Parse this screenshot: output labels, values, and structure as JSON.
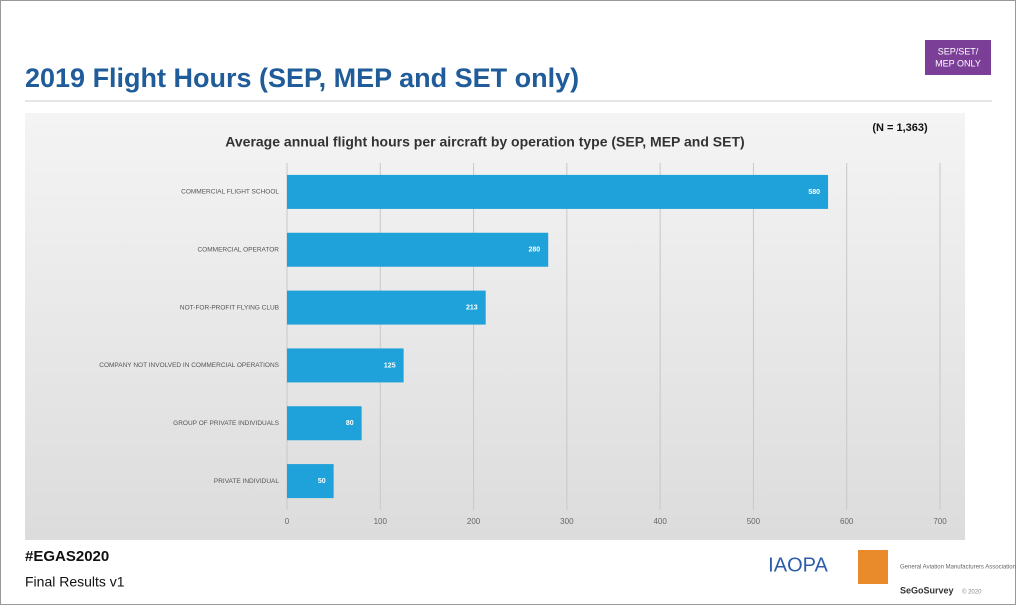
{
  "slide_title": "2019 Flight Hours (SEP, MEP and SET only)",
  "badge": [
    "SEP/SET/",
    "MEP ONLY"
  ],
  "footer": {
    "hashtag": "#EGAS2020",
    "version": "Final Results v1"
  },
  "logos": {
    "iaopa": "IAOPA",
    "gama": "General Aviation Manufacturers Association",
    "survey": "SeGoSurvey",
    "copyright": "© 2020"
  },
  "chart_data": {
    "type": "hbar",
    "title": "Average annual flight hours per aircraft by operation type (SEP, MEP and SET)",
    "annotation": "(N = 1,363)",
    "categories": [
      "COMMERCIAL FLIGHT SCHOOL",
      "COMMERCIAL OPERATOR",
      "NOT-FOR-PROFIT FLYING CLUB",
      "COMPANY NOT INVOLVED IN COMMERCIAL OPERATIONS",
      "GROUP OF PRIVATE INDIVIDUALS",
      "PRIVATE INDIVIDUAL"
    ],
    "values": [
      580,
      280,
      213,
      125,
      80,
      50
    ],
    "color": "#1fa1d9",
    "xlim": [
      0,
      700
    ],
    "xticks": [
      0,
      100,
      200,
      300,
      400,
      500,
      600,
      700
    ],
    "grid": true
  }
}
